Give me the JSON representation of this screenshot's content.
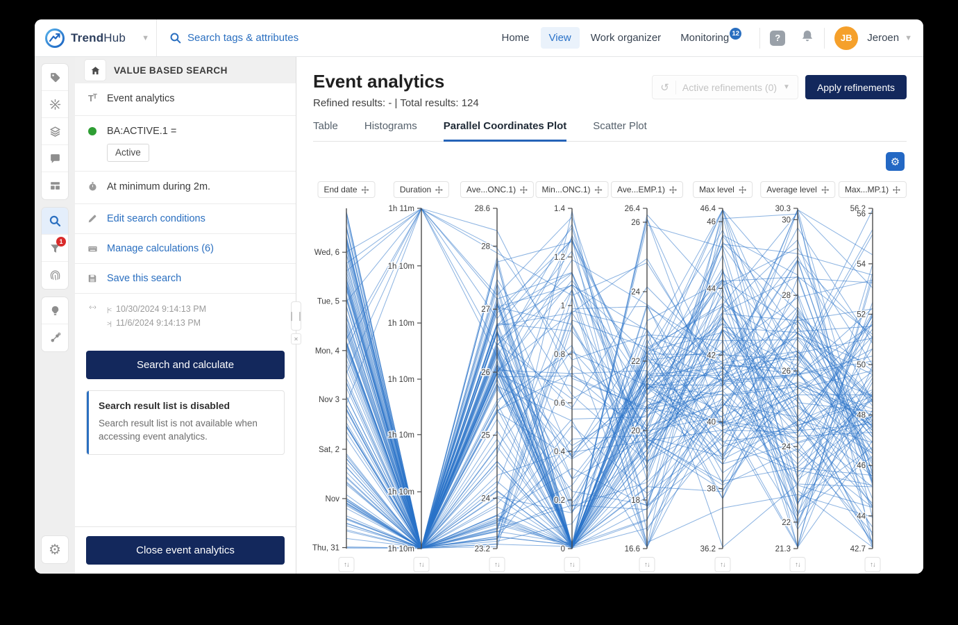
{
  "navbar": {
    "brand_bold": "Trend",
    "brand_light": "Hub",
    "search_placeholder": "Search tags & attributes",
    "items": [
      {
        "label": "Home",
        "active": false
      },
      {
        "label": "View",
        "active": true
      },
      {
        "label": "Work organizer",
        "active": false
      },
      {
        "label": "Monitoring",
        "active": false,
        "badge": "12"
      }
    ],
    "user": {
      "initials": "JB",
      "name": "Jeroen"
    }
  },
  "sidebar": {
    "filter_badge": "1"
  },
  "panel": {
    "title": "VALUE BASED SEARCH",
    "analytics_label": "Event analytics",
    "condition": "BA:ACTIVE.1 =",
    "condition_value": "Active",
    "duration_text": "At minimum during 2m.",
    "edit_link": "Edit search conditions",
    "calc_link": "Manage calculations (6)",
    "save_link": "Save this search",
    "time_from": "10/30/2024 9:14:13 PM",
    "time_to": "11/6/2024 9:14:13 PM",
    "search_button": "Search and calculate",
    "notice_title": "Search result list is disabled",
    "notice_body": "Search result list is not available when accessing event analytics.",
    "close_button": "Close event analytics"
  },
  "main": {
    "title": "Event analytics",
    "subtitle": "Refined results: - | Total results: 124",
    "refinements_label": "Active refinements (0)",
    "apply_button": "Apply refinements",
    "tabs": [
      {
        "label": "Table",
        "active": false
      },
      {
        "label": "Histograms",
        "active": false
      },
      {
        "label": "Parallel Coordinates Plot",
        "active": true
      },
      {
        "label": "Scatter Plot",
        "active": false
      }
    ]
  },
  "chart_data": {
    "type": "parallel-coordinates",
    "line_count": 124,
    "line_color": "#2a72c8",
    "line_opacity": 0.55,
    "axes": [
      {
        "label": "End date",
        "kind": "date",
        "ticks": [
          {
            "label": "Wed, 6",
            "t": 0.129
          },
          {
            "label": "Tue, 5",
            "t": 0.272
          },
          {
            "label": "Mon, 4",
            "t": 0.418
          },
          {
            "label": "Nov 3",
            "t": 0.561
          },
          {
            "label": "Sat, 2",
            "t": 0.708
          },
          {
            "label": "Nov",
            "t": 0.853
          },
          {
            "label": "Thu, 31",
            "t": 0.997
          }
        ]
      },
      {
        "label": "Duration",
        "kind": "duration",
        "ticks": [
          {
            "label": "1h 11m",
            "t": 0.0
          },
          {
            "label": "1h 10m",
            "t": 0.169
          },
          {
            "label": "1h 10m",
            "t": 0.337
          },
          {
            "label": "1h 10m",
            "t": 0.502
          },
          {
            "label": "1h 10m",
            "t": 0.665
          },
          {
            "label": "1h 10m",
            "t": 0.833
          },
          {
            "label": "1h 10m",
            "t": 1.0
          }
        ]
      },
      {
        "label": "Ave...ONC.1)",
        "kind": "number",
        "max": 28.6,
        "min": 23.2,
        "ticks": [
          {
            "label": "28.6",
            "v": 28.6
          },
          {
            "label": "28",
            "v": 28
          },
          {
            "label": "27",
            "v": 27
          },
          {
            "label": "26",
            "v": 26
          },
          {
            "label": "25",
            "v": 25
          },
          {
            "label": "24",
            "v": 24
          },
          {
            "label": "23.2",
            "v": 23.2
          }
        ]
      },
      {
        "label": "Min...ONC.1)",
        "kind": "number",
        "max": 1.4,
        "min": 0,
        "ticks": [
          {
            "label": "1.4",
            "v": 1.4
          },
          {
            "label": "1.2",
            "v": 1.2
          },
          {
            "label": "1",
            "v": 1
          },
          {
            "label": "0.8",
            "v": 0.8
          },
          {
            "label": "0.6",
            "v": 0.6
          },
          {
            "label": "0.4",
            "v": 0.4
          },
          {
            "label": "0.2",
            "v": 0.2
          },
          {
            "label": "0",
            "v": 0
          }
        ]
      },
      {
        "label": "Ave...EMP.1)",
        "kind": "number",
        "max": 26.4,
        "min": 16.6,
        "ticks": [
          {
            "label": "26.4",
            "v": 26.4
          },
          {
            "label": "26",
            "v": 26
          },
          {
            "label": "24",
            "v": 24
          },
          {
            "label": "22",
            "v": 22
          },
          {
            "label": "20",
            "v": 20
          },
          {
            "label": "18",
            "v": 18
          },
          {
            "label": "16.6",
            "v": 16.6
          }
        ]
      },
      {
        "label": "Max level",
        "kind": "number",
        "max": 46.4,
        "min": 36.2,
        "ticks": [
          {
            "label": "46.4",
            "v": 46.4
          },
          {
            "label": "46",
            "v": 46
          },
          {
            "label": "44",
            "v": 44
          },
          {
            "label": "42",
            "v": 42
          },
          {
            "label": "40",
            "v": 40
          },
          {
            "label": "38",
            "v": 38
          },
          {
            "label": "36.2",
            "v": 36.2
          }
        ]
      },
      {
        "label": "Average level",
        "kind": "number",
        "max": 30.3,
        "min": 21.3,
        "ticks": [
          {
            "label": "30.3",
            "v": 30.3
          },
          {
            "label": "30",
            "v": 30
          },
          {
            "label": "28",
            "v": 28
          },
          {
            "label": "26",
            "v": 26
          },
          {
            "label": "24",
            "v": 24
          },
          {
            "label": "22",
            "v": 22
          },
          {
            "label": "21.3",
            "v": 21.3
          }
        ]
      },
      {
        "label": "Max...MP.1)",
        "kind": "number",
        "max": 56.2,
        "min": 42.7,
        "ticks": [
          {
            "label": "56.2",
            "v": 56.2
          },
          {
            "label": "56",
            "v": 56
          },
          {
            "label": "54",
            "v": 54
          },
          {
            "label": "52",
            "v": 52
          },
          {
            "label": "50",
            "v": 50
          },
          {
            "label": "48",
            "v": 48
          },
          {
            "label": "46",
            "v": 46
          },
          {
            "label": "44",
            "v": 44
          },
          {
            "label": "42.7",
            "v": 42.7
          }
        ]
      }
    ],
    "top_duration_lines": 8,
    "line_distributions": [
      {
        "mode": "uniform",
        "lo": 0.0,
        "hi": 1.0
      },
      {
        "mode": "uniform",
        "lo": 0.996,
        "hi": 1.0
      },
      {
        "mode": "mix",
        "parts": [
          {
            "w": 0.5,
            "g": [
              0.42,
              0.09
            ]
          },
          {
            "w": 0.3,
            "u": [
              0.45,
              0.95
            ]
          },
          {
            "w": 0.14,
            "u": [
              0.9,
              1.0
            ]
          },
          {
            "w": 0.06,
            "u": [
              0.05,
              0.3
            ]
          }
        ]
      },
      {
        "mode": "mix",
        "parts": [
          {
            "w": 0.45,
            "u": [
              0.985,
              1.0
            ]
          },
          {
            "w": 0.33,
            "u": [
              0.45,
              0.95
            ]
          },
          {
            "w": 0.16,
            "u": [
              0.15,
              0.45
            ]
          },
          {
            "w": 0.06,
            "u": [
              0.0,
              0.12
            ]
          }
        ]
      },
      {
        "mode": "gauss",
        "m": 0.58,
        "s": 0.22
      },
      {
        "mode": "gauss",
        "m": 0.48,
        "s": 0.24
      },
      {
        "mode": "gauss",
        "m": 0.5,
        "s": 0.25
      },
      {
        "mode": "gauss",
        "m": 0.55,
        "s": 0.24
      }
    ]
  }
}
